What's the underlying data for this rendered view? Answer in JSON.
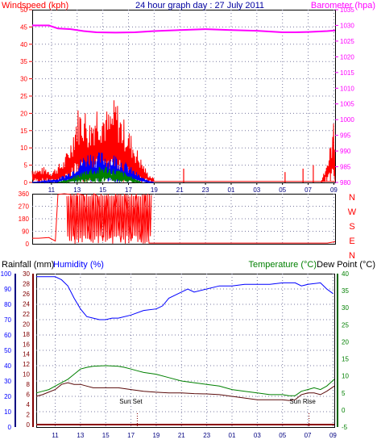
{
  "colors": {
    "red": "#ff0000",
    "blue": "#0000ff",
    "green": "#008000",
    "magenta": "#ff00ff",
    "darkblue": "#000080",
    "darkgreen": "#006400",
    "maroon": "#5a0a0a",
    "rain": "#8b0000",
    "axis": "#800000",
    "grid": "#7a7aa0"
  },
  "chart_data": [
    {
      "type": "line",
      "title": "24 hour graph day : 27 July 2011",
      "ylabel_left": "Windspeed (kph)",
      "ylabel_right": "Barometer (hpa)",
      "x_ticks": [
        "11",
        "13",
        "15",
        "17",
        "19",
        "21",
        "23",
        "01",
        "03",
        "05",
        "07",
        "09"
      ],
      "y_left_ticks": [
        "0",
        "5",
        "10",
        "15",
        "20",
        "25",
        "30",
        "35",
        "40",
        "45",
        "50"
      ],
      "y_right_ticks": [
        "980",
        "985",
        "990",
        "995",
        "1000",
        "1005",
        "1010",
        "1015",
        "1020",
        "1025",
        "1030",
        "1035"
      ],
      "ylim_left": [
        0,
        50
      ],
      "ylim_right": [
        980,
        1035
      ],
      "x_range_hours": [
        9.5,
        33.1
      ],
      "grid": true,
      "series": [
        {
          "color": "#ff00ff",
          "axis": "right",
          "points": [
            [
              9.5,
              1030
            ],
            [
              10.8,
              1030
            ],
            [
              11.5,
              1029
            ],
            [
              12.5,
              1028.8
            ],
            [
              13.5,
              1028.2
            ],
            [
              14.5,
              1027.8
            ],
            [
              16,
              1027.7
            ],
            [
              17.5,
              1027.8
            ],
            [
              19,
              1028.2
            ],
            [
              21,
              1028.5
            ],
            [
              23,
              1028.8
            ],
            [
              25,
              1028.5
            ],
            [
              27,
              1028.3
            ],
            [
              29,
              1027.8
            ],
            [
              30,
              1027.8
            ],
            [
              31,
              1027.9
            ],
            [
              32.5,
              1028.2
            ],
            [
              33.1,
              1028.4
            ]
          ]
        },
        {
          "color": "#ff0000",
          "axis": "left",
          "kind": "gust",
          "points": [
            [
              9.5,
              4
            ],
            [
              10,
              3.5
            ],
            [
              10.5,
              4
            ],
            [
              11,
              3
            ],
            [
              11.5,
              4.5
            ],
            [
              12,
              6
            ],
            [
              12.5,
              11
            ],
            [
              13,
              19
            ],
            [
              13.5,
              20
            ],
            [
              14,
              16
            ],
            [
              14.5,
              21
            ],
            [
              15,
              20
            ],
            [
              15.5,
              18
            ],
            [
              16,
              22
            ],
            [
              16.5,
              17
            ],
            [
              17,
              14
            ],
            [
              17.5,
              10
            ],
            [
              18,
              6
            ],
            [
              18.5,
              2.5
            ],
            [
              19,
              1
            ]
          ]
        },
        {
          "color": "#0000ff",
          "axis": "left",
          "kind": "average",
          "points": [
            [
              9.5,
              0
            ],
            [
              11.5,
              1
            ],
            [
              12.5,
              3
            ],
            [
              13,
              5
            ],
            [
              13.5,
              7
            ],
            [
              14,
              8
            ],
            [
              14.5,
              7.5
            ],
            [
              15,
              8
            ],
            [
              15.5,
              7
            ],
            [
              16,
              7.5
            ],
            [
              16.5,
              6
            ],
            [
              17,
              4.5
            ],
            [
              17.5,
              3
            ],
            [
              18,
              1.5
            ],
            [
              18.5,
              0.5
            ],
            [
              19,
              0
            ]
          ]
        },
        {
          "color": "#008000",
          "axis": "left",
          "kind": "light",
          "points": [
            [
              11.5,
              0
            ],
            [
              12.5,
              1
            ],
            [
              13,
              2
            ],
            [
              13.5,
              3
            ],
            [
              14,
              4
            ],
            [
              14.5,
              3.5
            ],
            [
              15,
              4.5
            ],
            [
              15.5,
              4
            ],
            [
              16,
              3.5
            ],
            [
              16.5,
              3
            ],
            [
              17,
              2
            ],
            [
              17.5,
              1
            ],
            [
              18,
              0
            ]
          ]
        },
        {
          "color": "#ff0000",
          "axis": "left",
          "kind": "late",
          "points": [
            [
              32,
              0
            ],
            [
              32.3,
              4
            ],
            [
              32.6,
              7
            ],
            [
              32.8,
              11
            ],
            [
              33,
              16
            ],
            [
              33.1,
              6
            ]
          ]
        }
      ]
    },
    {
      "type": "line",
      "title": "",
      "y_left_ticks": [
        "0",
        "90",
        "180",
        "270",
        "360"
      ],
      "compass_labels": [
        "N",
        "W",
        "S",
        "E",
        "N"
      ],
      "ylim": [
        0,
        360
      ],
      "x_range_hours": [
        9.5,
        33.1
      ],
      "grid": true,
      "series": [
        {
          "color": "#ff0000",
          "kind": "direction",
          "points": [
            [
              9.5,
              40
            ],
            [
              10,
              40
            ],
            [
              10.8,
              45
            ],
            [
              11.3,
              20
            ],
            [
              11.5,
              355
            ],
            [
              12,
              360
            ],
            [
              12.5,
              355
            ],
            [
              12.8,
              30
            ],
            [
              13,
              360
            ],
            [
              13.5,
              350
            ],
            [
              14,
              30
            ],
            [
              14.3,
              360
            ],
            [
              14.6,
              340
            ],
            [
              15,
              20
            ],
            [
              15.3,
              350
            ],
            [
              15.6,
              40
            ],
            [
              16,
              360
            ],
            [
              16.4,
              10
            ],
            [
              16.8,
              355
            ],
            [
              17.2,
              20
            ],
            [
              17.6,
              360
            ],
            [
              18,
              10
            ],
            [
              18.3,
              350
            ],
            [
              18.6,
              5
            ],
            [
              19,
              5
            ],
            [
              25,
              5
            ],
            [
              32.5,
              5
            ],
            [
              33.1,
              15
            ]
          ]
        }
      ]
    },
    {
      "type": "line",
      "title": "",
      "ylabel_left_rain": "Rainfall (mm)",
      "ylabel_left_humidity": "Humidity (%)",
      "ylabel_right": "Temperature (°C)",
      "ylabel_right2": "Dew Point (°C)",
      "x_ticks": [
        "11",
        "13",
        "15",
        "17",
        "19",
        "21",
        "23",
        "01",
        "03",
        "05",
        "07",
        "09"
      ],
      "humidity_ticks": [
        "0",
        "10",
        "20",
        "30",
        "40",
        "50",
        "60",
        "70",
        "80",
        "90",
        "100"
      ],
      "rain_ticks": [
        "0",
        "2",
        "4",
        "6",
        "8",
        "10",
        "12",
        "14",
        "16",
        "18",
        "20",
        "22",
        "24",
        "26",
        "28",
        "30"
      ],
      "temp_ticks": [
        "-5",
        "0",
        "5",
        "10",
        "15",
        "20",
        "25",
        "30",
        "35",
        "40"
      ],
      "ylim_humidity": [
        0,
        100
      ],
      "ylim_temp": [
        -5,
        40
      ],
      "x_range_hours": [
        9.5,
        33.1
      ],
      "grid": true,
      "annotations": [
        {
          "text": "Sun Set",
          "x_hour": 17.5
        },
        {
          "text": "Sun Rise",
          "x_hour": 31.1
        }
      ],
      "series": [
        {
          "color": "#0000ff",
          "axis": "humidity",
          "kind": "humidity",
          "points": [
            [
              9.5,
              98
            ],
            [
              10,
              98
            ],
            [
              11,
              98
            ],
            [
              11.5,
              96
            ],
            [
              12,
              92
            ],
            [
              12.5,
              84
            ],
            [
              13,
              77
            ],
            [
              13.5,
              72
            ],
            [
              14,
              71
            ],
            [
              14.5,
              70
            ],
            [
              15,
              70
            ],
            [
              15.5,
              71
            ],
            [
              16,
              71
            ],
            [
              17,
              73
            ],
            [
              18,
              76
            ],
            [
              19,
              77
            ],
            [
              19.5,
              79
            ],
            [
              20,
              84
            ],
            [
              21,
              88
            ],
            [
              21.5,
              90
            ],
            [
              22,
              88
            ],
            [
              23,
              90
            ],
            [
              24,
              92
            ],
            [
              25,
              92
            ],
            [
              26,
              93
            ],
            [
              27,
              93
            ],
            [
              28,
              93
            ],
            [
              29,
              94
            ],
            [
              29.5,
              94
            ],
            [
              30,
              94
            ],
            [
              30.5,
              92
            ],
            [
              31,
              93
            ],
            [
              32,
              94
            ],
            [
              32.5,
              90
            ],
            [
              33,
              87
            ]
          ]
        },
        {
          "color": "#008000",
          "axis": "temp",
          "kind": "temperature",
          "points": [
            [
              9.5,
              5
            ],
            [
              10,
              5.5
            ],
            [
              10.5,
              6
            ],
            [
              11,
              7
            ],
            [
              11.5,
              8
            ],
            [
              12,
              9
            ],
            [
              12.5,
              10.5
            ],
            [
              13,
              12
            ],
            [
              13.5,
              12.5
            ],
            [
              14,
              12.8
            ],
            [
              15,
              13
            ],
            [
              16,
              12.8
            ],
            [
              16.5,
              12.5
            ],
            [
              17,
              12
            ],
            [
              17.5,
              11.5
            ],
            [
              18,
              11
            ],
            [
              19,
              10.5
            ],
            [
              20,
              9.5
            ],
            [
              21,
              8.5
            ],
            [
              22,
              8
            ],
            [
              23,
              7.5
            ],
            [
              24,
              7
            ],
            [
              25,
              6
            ],
            [
              26,
              5.5
            ],
            [
              27,
              5
            ],
            [
              28,
              4.5
            ],
            [
              29,
              4.5
            ],
            [
              29.5,
              4.2
            ],
            [
              30,
              4.2
            ],
            [
              30.5,
              5.5
            ],
            [
              31,
              6
            ],
            [
              31.5,
              6.5
            ],
            [
              32,
              6
            ],
            [
              32.5,
              7
            ],
            [
              33.1,
              9
            ]
          ]
        },
        {
          "color": "#5a0a0a",
          "axis": "temp",
          "kind": "dewpoint",
          "points": [
            [
              9.5,
              4
            ],
            [
              10,
              4.5
            ],
            [
              11,
              6
            ],
            [
              11.5,
              7.5
            ],
            [
              12,
              8
            ],
            [
              12.5,
              7.5
            ],
            [
              13,
              7.5
            ],
            [
              13.5,
              7
            ],
            [
              14,
              6.5
            ],
            [
              15,
              6.5
            ],
            [
              16,
              6.5
            ],
            [
              17,
              6
            ],
            [
              18,
              5.5
            ],
            [
              19,
              5.2
            ],
            [
              20,
              5
            ],
            [
              21,
              5
            ],
            [
              22,
              4.8
            ],
            [
              23,
              4.7
            ],
            [
              24,
              4.5
            ],
            [
              25,
              4
            ],
            [
              26,
              3.5
            ],
            [
              27,
              3
            ],
            [
              28,
              3
            ],
            [
              29,
              3
            ],
            [
              29.5,
              2.8
            ],
            [
              30,
              3
            ],
            [
              30.5,
              4.5
            ],
            [
              31,
              5
            ],
            [
              31.5,
              5
            ],
            [
              32,
              4.5
            ],
            [
              32.5,
              5.5
            ],
            [
              33.1,
              7
            ]
          ]
        },
        {
          "color": "#8b0000",
          "axis": "rain",
          "kind": "rainfall",
          "points": [
            [
              9.5,
              0
            ],
            [
              33.1,
              0
            ]
          ]
        }
      ]
    }
  ]
}
